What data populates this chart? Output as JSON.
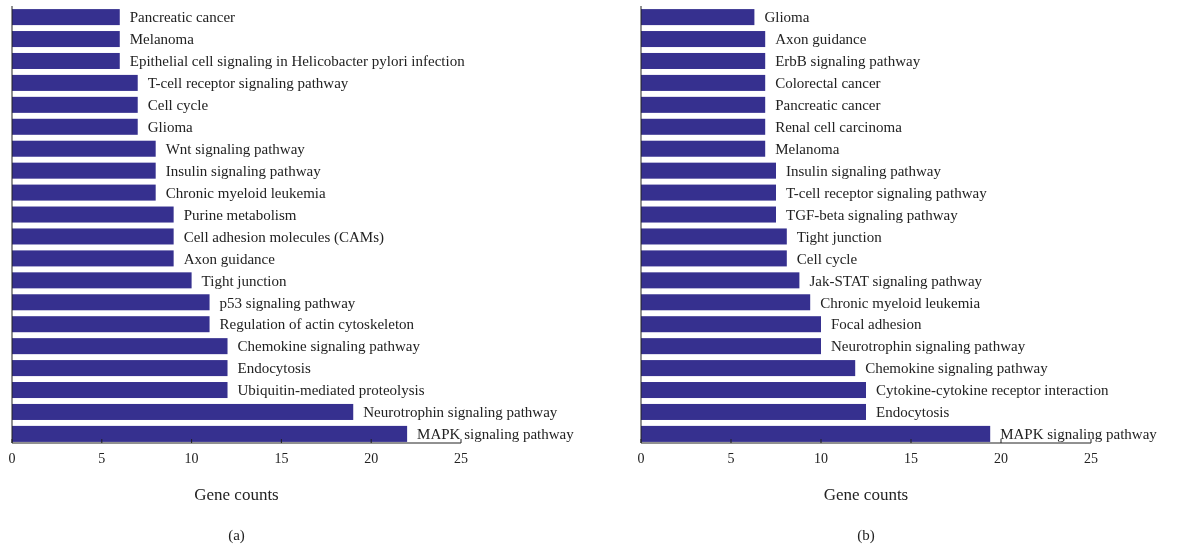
{
  "chart_data": [
    {
      "type": "bar",
      "orientation": "horizontal",
      "xlabel": "Gene counts",
      "annotations": [
        "(a)"
      ],
      "data_labels": false,
      "grid": false,
      "categories": [
        "Pancreatic cancer",
        "Melanoma",
        "Epithelial cell signaling in Helicobacter pylori infection",
        "T-cell receptor signaling pathway",
        "Cell cycle",
        "Glioma",
        "Wnt signaling pathway",
        "Insulin signaling pathway",
        "Chronic myeloid leukemia",
        "Purine metabolism",
        "Cell adhesion molecules (CAMs)",
        "Axon guidance",
        "Tight junction",
        "p53 signaling pathway",
        "Regulation of actin cytoskeleton",
        "Chemokine signaling pathway",
        "Endocytosis",
        "Ubiquitin-mediated proteolysis",
        "Neurotrophin signaling pathway",
        "MAPK signaling pathway"
      ],
      "series": [
        {
          "color": "#36308f",
          "values": [
            6,
            6,
            6,
            7,
            7,
            7,
            8,
            8,
            8,
            9,
            9,
            9,
            10,
            11,
            11,
            12,
            12,
            12,
            19,
            22
          ]
        }
      ],
      "xlim": [
        0,
        25
      ],
      "xticks": [
        0,
        5,
        10,
        15,
        20,
        25
      ]
    },
    {
      "type": "bar",
      "orientation": "horizontal",
      "xlabel": "Gene counts",
      "annotations": [
        "(b)"
      ],
      "data_labels": false,
      "grid": false,
      "categories": [
        "Glioma",
        "Axon guidance",
        "ErbB signaling pathway",
        "Colorectal cancer",
        "Pancreatic cancer",
        "Renal cell carcinoma",
        "Melanoma",
        "Insulin signaling pathway",
        "T-cell receptor signaling pathway",
        "TGF-beta signaling pathway",
        "Tight junction",
        "Cell cycle",
        "Jak-STAT signaling pathway",
        "Chronic myeloid leukemia",
        "Focal adhesion",
        "Neurotrophin signaling pathway",
        "Chemokine signaling pathway",
        "Cytokine-cytokine receptor interaction",
        "Endocytosis",
        "MAPK signaling pathway"
      ],
      "series": [
        {
          "color": "#36308f",
          "values": [
            6.3,
            6.9,
            6.9,
            6.9,
            6.9,
            6.9,
            6.9,
            7.5,
            7.5,
            7.5,
            8.1,
            8.1,
            8.8,
            9.4,
            10,
            10,
            11.9,
            12.5,
            12.5,
            19.4
          ]
        }
      ],
      "xlim": [
        0,
        25
      ],
      "xticks": [
        0,
        5,
        10,
        15,
        20,
        25
      ]
    }
  ]
}
